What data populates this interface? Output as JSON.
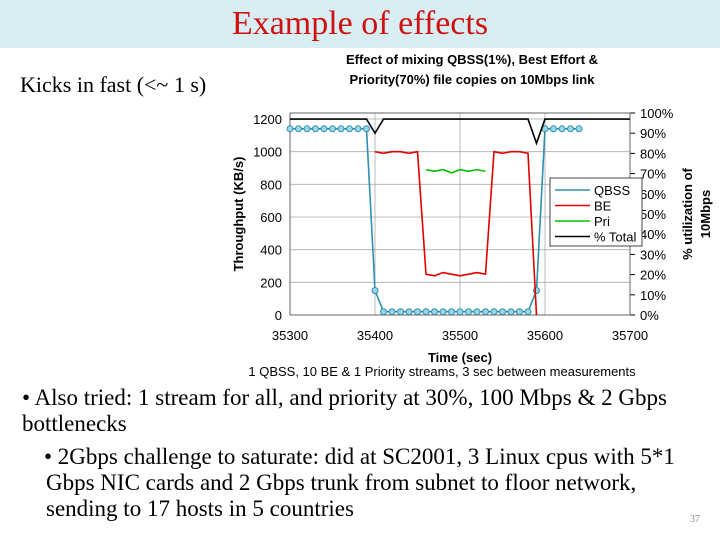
{
  "slide": {
    "title": "Example of effects",
    "subtitle": "Kicks in fast (<~ 1 s)",
    "bullets": [
      "• Also tried: 1 stream for all, and priority at 30%, 100 Mbps & 2 Gbps bottlenecks",
      "• 2Gbps challenge to saturate: did at SC2001, 3 Linux cpus with 5*1 Gbps NIC cards and 2 Gbps trunk from subnet to floor network, sending to 17 hosts in 5 countries"
    ],
    "page_number": "37"
  },
  "chart_data": {
    "type": "line",
    "title_lines": [
      "Effect of mixing QBSS(1%), Best Effort &",
      "Priority(70%) file copies on 10Mbps link"
    ],
    "x_label": "Time (sec)",
    "y_label": "Throughput (KB/s)",
    "y2_label_lines": [
      "% utilization of",
      "10Mbps"
    ],
    "note": "1 QBSS, 10 BE & 1 Priority streams, 3 sec between measurements",
    "x": [
      35300,
      35310,
      35320,
      35330,
      35340,
      35350,
      35360,
      35370,
      35380,
      35390,
      35400,
      35410,
      35420,
      35430,
      35440,
      35450,
      35460,
      35470,
      35480,
      35490,
      35500,
      35510,
      35520,
      35530,
      35540,
      35550,
      35560,
      35570,
      35580,
      35590,
      35600,
      35610,
      35620,
      35630,
      35640,
      35650,
      35660,
      35670,
      35680,
      35690,
      35700
    ],
    "xlim": [
      35300,
      35700
    ],
    "xticks": [
      35300,
      35400,
      35500,
      35600,
      35700
    ],
    "ylim": [
      0,
      1200
    ],
    "yticks": [
      0,
      200,
      400,
      600,
      800,
      1000,
      1200
    ],
    "y2lim": [
      0,
      100
    ],
    "y2ticks": [
      {
        "value": 0,
        "label": "0%"
      },
      {
        "value": 10,
        "label": "10%"
      },
      {
        "value": 20,
        "label": "20%"
      },
      {
        "value": 30,
        "label": "30%"
      },
      {
        "value": 40,
        "label": "40%"
      },
      {
        "value": 50,
        "label": "50%"
      },
      {
        "value": 60,
        "label": "60%"
      },
      {
        "value": 70,
        "label": "70%"
      },
      {
        "value": 80,
        "label": "80%"
      },
      {
        "value": 90,
        "label": "90%"
      },
      {
        "value": 100,
        "label": "100%"
      }
    ],
    "grid": true,
    "series": [
      {
        "name": "QBSS",
        "color": "#2f8fb0",
        "marker": "circle",
        "values": [
          1140,
          1140,
          1140,
          1140,
          1140,
          1140,
          1140,
          1140,
          1140,
          1140,
          150,
          20,
          20,
          20,
          20,
          20,
          20,
          20,
          20,
          20,
          20,
          20,
          20,
          20,
          20,
          20,
          20,
          20,
          20,
          150,
          1140,
          1140,
          1140,
          1140,
          1140,
          null,
          null,
          null,
          null,
          null,
          null
        ]
      },
      {
        "name": "BE",
        "color": "#e00000",
        "values": [
          null,
          null,
          null,
          null,
          null,
          null,
          null,
          null,
          null,
          null,
          1000,
          990,
          1000,
          1000,
          990,
          1000,
          250,
          240,
          260,
          250,
          240,
          250,
          260,
          250,
          1000,
          990,
          1000,
          1000,
          990,
          0,
          null,
          null,
          null,
          null,
          null,
          null,
          null,
          null,
          null,
          null,
          null
        ]
      },
      {
        "name": "Pri",
        "color": "#00c000",
        "values": [
          null,
          null,
          null,
          null,
          null,
          null,
          null,
          null,
          null,
          null,
          null,
          null,
          null,
          null,
          null,
          null,
          890,
          880,
          890,
          870,
          890,
          880,
          890,
          880,
          null,
          null,
          null,
          null,
          null,
          null,
          null,
          null,
          null,
          null,
          null,
          null,
          null,
          null,
          null,
          null,
          null
        ]
      },
      {
        "name": "% Total",
        "color": "#000000",
        "axis": "y2",
        "values": [
          97,
          97,
          97,
          97,
          97,
          97,
          97,
          97,
          97,
          97,
          90,
          97,
          97,
          97,
          97,
          97,
          97,
          97,
          97,
          97,
          97,
          97,
          97,
          97,
          97,
          97,
          97,
          97,
          97,
          85,
          97,
          97,
          97,
          97,
          97,
          97,
          97,
          97,
          97,
          97,
          97
        ]
      }
    ]
  }
}
